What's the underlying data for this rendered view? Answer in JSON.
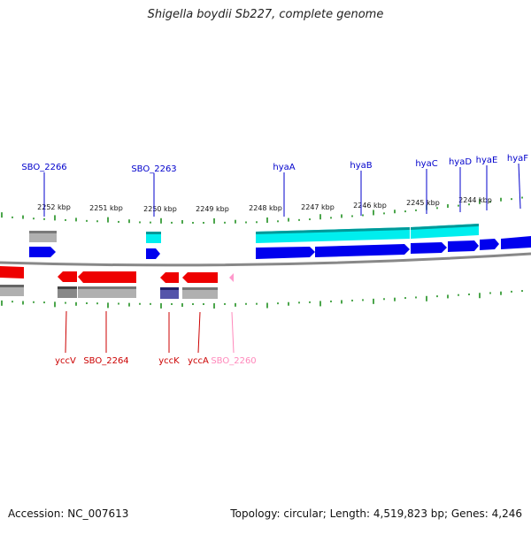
{
  "title": "Shigella boydii Sb227, complete genome",
  "footer": {
    "accession": "Accession: NC_007613",
    "summary": "Topology: circular; Length: 4,519,823 bp; Genes: 4,246"
  },
  "colors": {
    "forward_cds": "#0000ee",
    "reverse_cds": "#ee0000",
    "forward_label": "#0000cc",
    "reverse_label": "#cc0000",
    "pseudo_label": "#ff88bb",
    "tick": "#118811",
    "backbone": "#888888",
    "gene_cyan": "#00eeee",
    "gene_gray": "#b0b0b0"
  },
  "scale_labels": [
    "2252 kbp",
    "2251 kbp",
    "2250 kbp",
    "2249 kbp",
    "2248 kbp",
    "2247 kbp",
    "2246 kbp",
    "2245 kbp",
    "2244 kbp"
  ],
  "forward_genes": [
    "SBO_2266",
    "SBO_2263",
    "hyaA",
    "hyaB",
    "hyaC",
    "hyaD",
    "hyaE",
    "hyaF"
  ],
  "reverse_genes": [
    "yccV",
    "SBO_2264",
    "yccK",
    "yccA",
    "SBO_2260"
  ]
}
